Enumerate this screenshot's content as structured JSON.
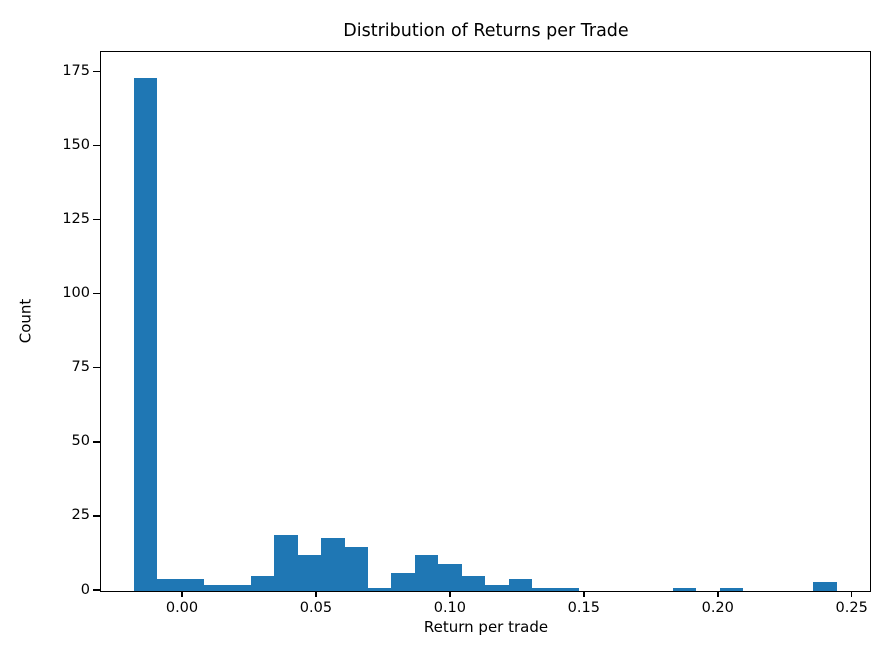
{
  "chart_data": {
    "type": "bar",
    "subtype": "histogram",
    "title": "Distribution of Returns per Trade",
    "xlabel": "Return per trade",
    "ylabel": "Count",
    "bar_color": "#1f77b4",
    "axis_color": "#000000",
    "background_color": "#ffffff",
    "grid": false,
    "legend": null,
    "bin_start": -0.0179,
    "bin_width": 0.00875,
    "bin_counts": [
      173,
      4,
      4,
      2,
      2,
      5,
      19,
      12,
      18,
      15,
      1,
      6,
      12,
      9,
      5,
      2,
      4,
      1,
      1,
      0,
      0,
      0,
      0,
      1,
      0,
      1,
      0,
      0,
      0,
      3
    ],
    "xticks": {
      "values": [
        0,
        0.05,
        0.1,
        0.15,
        0.2,
        0.25
      ],
      "labels": [
        "0.00",
        "0.05",
        "0.10",
        "0.15",
        "0.20",
        "0.25"
      ]
    },
    "yticks": {
      "values": [
        0,
        25,
        50,
        75,
        100,
        125,
        150,
        175
      ],
      "labels": [
        "0",
        "25",
        "50",
        "75",
        "100",
        "125",
        "150",
        "175"
      ]
    },
    "xlim": [
      -0.0306,
      0.2565
    ],
    "ylim": [
      0,
      181.9
    ]
  }
}
